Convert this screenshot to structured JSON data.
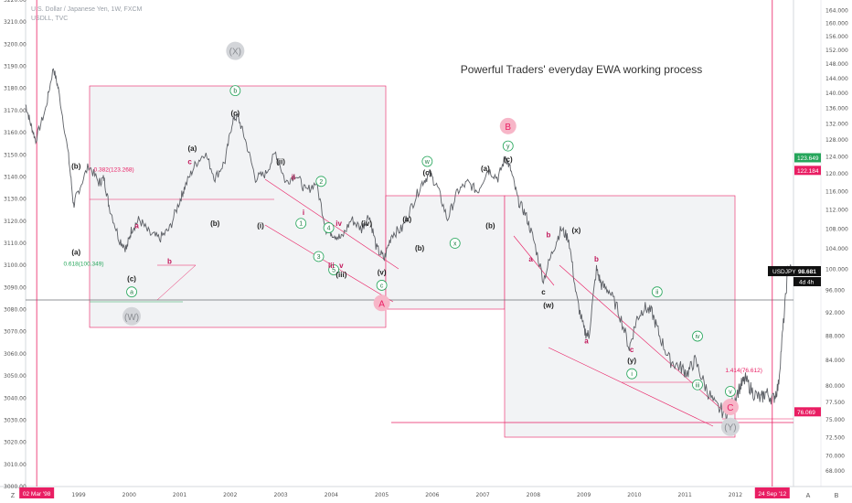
{
  "header": {
    "symbol_line": "U.S. Dollar / Japanese Yen, 1W, FXCM",
    "sub_line": "USDLL, TVC"
  },
  "chart_data": {
    "type": "line",
    "title": "Powerful Traders' everyday EWA working process",
    "y_left": {
      "range": [
        3000,
        3220
      ],
      "ticks": [
        3000,
        3010,
        3020,
        3030,
        3040,
        3050,
        3060,
        3070,
        3080,
        3090,
        3100,
        3110,
        3120,
        3130,
        3140,
        3150,
        3160,
        3170,
        3180,
        3190,
        3200,
        3210,
        3220
      ]
    },
    "y_right": {
      "range": [
        66,
        165
      ],
      "ticks": [
        68,
        70,
        72.5,
        75,
        77.5,
        80,
        84,
        88,
        92,
        96,
        100,
        104,
        108,
        112,
        116,
        120,
        124,
        128,
        132,
        136,
        140,
        144,
        148,
        152,
        156,
        160,
        164
      ]
    },
    "y_right_labels": [
      "68.000",
      "70.000",
      "72.500",
      "75.000",
      "77.500",
      "80.000",
      "84.000",
      "88.000",
      "92.000",
      "96.000",
      "100.000",
      "104.000",
      "108.000",
      "112.000",
      "116.000",
      "120.000",
      "124.000",
      "128.000",
      "132.000",
      "136.000",
      "140.000",
      "144.000",
      "148.000",
      "152.000",
      "156.000",
      "160.000",
      "164.000"
    ],
    "x": {
      "range": [
        1997.95,
        2013.15
      ],
      "ticks": [
        1999,
        2000,
        2001,
        2002,
        2003,
        2004,
        2005,
        2006,
        2007,
        2008,
        2009,
        2010,
        2011,
        2012
      ]
    },
    "series": [
      {
        "name": "USDJPY",
        "points": [
          [
            1997.95,
            137
          ],
          [
            1998.05,
            132
          ],
          [
            1998.15,
            128
          ],
          [
            1998.35,
            136
          ],
          [
            1998.5,
            147
          ],
          [
            1998.6,
            141
          ],
          [
            1998.8,
            124
          ],
          [
            1998.9,
            113
          ],
          [
            1998.99,
            116
          ],
          [
            1999.2,
            122
          ],
          [
            1999.4,
            118
          ],
          [
            1999.5,
            119
          ],
          [
            1999.6,
            113
          ],
          [
            1999.8,
            106
          ],
          [
            1999.95,
            104
          ],
          [
            2000.05,
            108
          ],
          [
            2000.2,
            110
          ],
          [
            2000.4,
            107
          ],
          [
            2000.6,
            106
          ],
          [
            2000.8,
            108
          ],
          [
            2001.0,
            114
          ],
          [
            2001.1,
            117
          ],
          [
            2001.3,
            122
          ],
          [
            2001.5,
            125
          ],
          [
            2001.7,
            119
          ],
          [
            2001.9,
            123
          ],
          [
            2002.05,
            133
          ],
          [
            2002.15,
            134
          ],
          [
            2002.3,
            128
          ],
          [
            2002.5,
            119
          ],
          [
            2002.7,
            120
          ],
          [
            2002.9,
            125
          ],
          [
            2003.1,
            118
          ],
          [
            2003.3,
            120
          ],
          [
            2003.5,
            116
          ],
          [
            2003.7,
            118
          ],
          [
            2003.9,
            108
          ],
          [
            2004.05,
            107
          ],
          [
            2004.2,
            106
          ],
          [
            2004.4,
            110
          ],
          [
            2004.6,
            108
          ],
          [
            2004.75,
            111
          ],
          [
            2004.9,
            104
          ],
          [
            2005.05,
            102
          ],
          [
            2005.2,
            107
          ],
          [
            2005.4,
            108
          ],
          [
            2005.6,
            113
          ],
          [
            2005.8,
            118
          ],
          [
            2005.95,
            120
          ],
          [
            2006.1,
            117
          ],
          [
            2006.3,
            110
          ],
          [
            2006.5,
            116
          ],
          [
            2006.7,
            118
          ],
          [
            2006.9,
            116
          ],
          [
            2007.1,
            121
          ],
          [
            2007.3,
            119
          ],
          [
            2007.45,
            124
          ],
          [
            2007.55,
            121
          ],
          [
            2007.7,
            114
          ],
          [
            2007.85,
            111
          ],
          [
            2008.0,
            106
          ],
          [
            2008.2,
            98
          ],
          [
            2008.4,
            104
          ],
          [
            2008.55,
            108
          ],
          [
            2008.7,
            106
          ],
          [
            2008.85,
            95
          ],
          [
            2009.0,
            89
          ],
          [
            2009.1,
            88
          ],
          [
            2009.25,
            100
          ],
          [
            2009.35,
            97
          ],
          [
            2009.5,
            96
          ],
          [
            2009.7,
            92
          ],
          [
            2009.9,
            86
          ],
          [
            2010.05,
            91
          ],
          [
            2010.2,
            93
          ],
          [
            2010.35,
            92
          ],
          [
            2010.5,
            88
          ],
          [
            2010.7,
            84
          ],
          [
            2010.9,
            83
          ],
          [
            2011.05,
            82
          ],
          [
            2011.2,
            84
          ],
          [
            2011.4,
            80
          ],
          [
            2011.6,
            77
          ],
          [
            2011.8,
            76
          ],
          [
            2011.95,
            77.5
          ],
          [
            2012.1,
            80
          ],
          [
            2012.2,
            81
          ],
          [
            2012.35,
            79
          ],
          [
            2012.5,
            78
          ],
          [
            2012.6,
            79
          ],
          [
            2012.75,
            78
          ],
          [
            2012.85,
            80
          ],
          [
            2012.95,
            90
          ],
          [
            2013.05,
            101
          ],
          [
            2013.15,
            98.7
          ]
        ]
      }
    ],
    "current_price": {
      "label": "USDJPY",
      "value": "98.681",
      "time": "4d 4h"
    },
    "price_marks": [
      {
        "value": "123.649",
        "color": "#26a65b"
      },
      {
        "value": "122.184",
        "color": "#e91e63"
      },
      {
        "value": "76.069",
        "color": "#e91e63"
      }
    ],
    "date_marks": [
      {
        "label": "02 Mar '98",
        "x": 1998.17
      },
      {
        "label": "24 Sep '12",
        "x": 2012.73
      }
    ],
    "fib_labels": [
      {
        "text": "0.382(123.268)",
        "color": "#e91e63",
        "x": 1999.3,
        "y": 3142.4
      },
      {
        "text": "0.618(100.349)",
        "color": "#26a65b",
        "x": 1998.7,
        "y": 3099.8
      },
      {
        "text": "1.414(76.612)",
        "color": "#e91e63",
        "x": 2011.8,
        "y": 3051.6
      }
    ],
    "wave_labels": [
      {
        "text": "(X)",
        "x": 2002.1,
        "y": 3197,
        "style": "big-gray"
      },
      {
        "text": "b",
        "x": 2002.1,
        "y": 3179,
        "style": "circle-green"
      },
      {
        "text": "(c)",
        "x": 2002.1,
        "y": 3169,
        "style": "plain"
      },
      {
        "text": "(a)",
        "x": 2001.25,
        "y": 3153,
        "style": "plain"
      },
      {
        "text": "c",
        "x": 2001.2,
        "y": 3147,
        "style": "red"
      },
      {
        "text": "(b)",
        "x": 1998.95,
        "y": 3145,
        "style": "plain"
      },
      {
        "text": "a",
        "x": 2000.15,
        "y": 3118,
        "style": "red"
      },
      {
        "text": "b",
        "x": 2000.8,
        "y": 3102,
        "style": "red"
      },
      {
        "text": "(a)",
        "x": 1998.95,
        "y": 3106,
        "style": "plain"
      },
      {
        "text": "(c)",
        "x": 2000.05,
        "y": 3094,
        "style": "plain"
      },
      {
        "text": "a",
        "x": 2000.05,
        "y": 3088,
        "style": "circle-green"
      },
      {
        "text": "(W)",
        "x": 2000.05,
        "y": 3077,
        "style": "big-gray"
      },
      {
        "text": "(b)",
        "x": 2001.7,
        "y": 3119,
        "style": "plain"
      },
      {
        "text": "(ii)",
        "x": 2003.0,
        "y": 3147,
        "style": "plain"
      },
      {
        "text": "ii",
        "x": 2003.25,
        "y": 3140,
        "style": "red"
      },
      {
        "text": "2",
        "x": 2003.8,
        "y": 3138,
        "style": "circle-green"
      },
      {
        "text": "(i)",
        "x": 2002.6,
        "y": 3118,
        "style": "plain"
      },
      {
        "text": "i",
        "x": 2003.45,
        "y": 3124,
        "style": "red"
      },
      {
        "text": "1",
        "x": 2003.4,
        "y": 3119,
        "style": "circle-green"
      },
      {
        "text": "4",
        "x": 2003.95,
        "y": 3117,
        "style": "circle-green"
      },
      {
        "text": "iv",
        "x": 2004.15,
        "y": 3119,
        "style": "red"
      },
      {
        "text": "(iv)",
        "x": 2004.7,
        "y": 3119,
        "style": "plain"
      },
      {
        "text": "3",
        "x": 2003.75,
        "y": 3104,
        "style": "circle-green"
      },
      {
        "text": "5",
        "x": 2004.05,
        "y": 3098,
        "style": "circle-green"
      },
      {
        "text": "iii",
        "x": 2004.0,
        "y": 3100,
        "style": "red"
      },
      {
        "text": "v",
        "x": 2004.2,
        "y": 3100,
        "style": "red"
      },
      {
        "text": "(iii)",
        "x": 2004.2,
        "y": 3096,
        "style": "plain"
      },
      {
        "text": "(v)",
        "x": 2005.0,
        "y": 3097,
        "style": "plain"
      },
      {
        "text": "c",
        "x": 2005.0,
        "y": 3091,
        "style": "circle-green"
      },
      {
        "text": "A",
        "x": 2005.0,
        "y": 3083,
        "style": "big-pink"
      },
      {
        "text": "w",
        "x": 2005.9,
        "y": 3147,
        "style": "circle-green"
      },
      {
        "text": "(c)",
        "x": 2005.9,
        "y": 3142,
        "style": "plain"
      },
      {
        "text": "(a)",
        "x": 2005.5,
        "y": 3121,
        "style": "plain"
      },
      {
        "text": "(b)",
        "x": 2005.75,
        "y": 3108,
        "style": "plain"
      },
      {
        "text": "x",
        "x": 2006.45,
        "y": 3110,
        "style": "circle-green"
      },
      {
        "text": "(a)",
        "x": 2007.05,
        "y": 3144,
        "style": "plain"
      },
      {
        "text": "(b)",
        "x": 2007.15,
        "y": 3118,
        "style": "plain"
      },
      {
        "text": "B",
        "x": 2007.5,
        "y": 3163,
        "style": "big-pink"
      },
      {
        "text": "y",
        "x": 2007.5,
        "y": 3154,
        "style": "circle-green"
      },
      {
        "text": "(c)",
        "x": 2007.5,
        "y": 3148,
        "style": "plain"
      },
      {
        "text": "b",
        "x": 2008.3,
        "y": 3114,
        "style": "red"
      },
      {
        "text": "a",
        "x": 2007.95,
        "y": 3103,
        "style": "red"
      },
      {
        "text": "c",
        "x": 2008.2,
        "y": 3088,
        "style": "plain"
      },
      {
        "text": "(w)",
        "x": 2008.3,
        "y": 3082,
        "style": "plain"
      },
      {
        "text": "(x)",
        "x": 2008.85,
        "y": 3116,
        "style": "plain"
      },
      {
        "text": "b",
        "x": 2009.25,
        "y": 3103,
        "style": "red"
      },
      {
        "text": "a",
        "x": 2009.05,
        "y": 3066,
        "style": "red"
      },
      {
        "text": "c",
        "x": 2009.95,
        "y": 3062,
        "style": "red"
      },
      {
        "text": "(y)",
        "x": 2009.95,
        "y": 3057,
        "style": "plain"
      },
      {
        "text": "i",
        "x": 2009.95,
        "y": 3051,
        "style": "circle-green"
      },
      {
        "text": "ii",
        "x": 2010.45,
        "y": 3088,
        "style": "circle-green"
      },
      {
        "text": "iv",
        "x": 2011.25,
        "y": 3068,
        "style": "circle-green"
      },
      {
        "text": "iii",
        "x": 2011.25,
        "y": 3046,
        "style": "circle-green"
      },
      {
        "text": "v",
        "x": 2011.9,
        "y": 3043,
        "style": "circle-green"
      },
      {
        "text": "C",
        "x": 2011.9,
        "y": 3036,
        "style": "big-pink"
      },
      {
        "text": "(Y)",
        "x": 2011.9,
        "y": 3027,
        "style": "big-gray"
      }
    ],
    "axis_corner": {
      "left": "Z",
      "right_a": "A",
      "right_b": "B"
    },
    "grid": false,
    "legend": "none"
  }
}
